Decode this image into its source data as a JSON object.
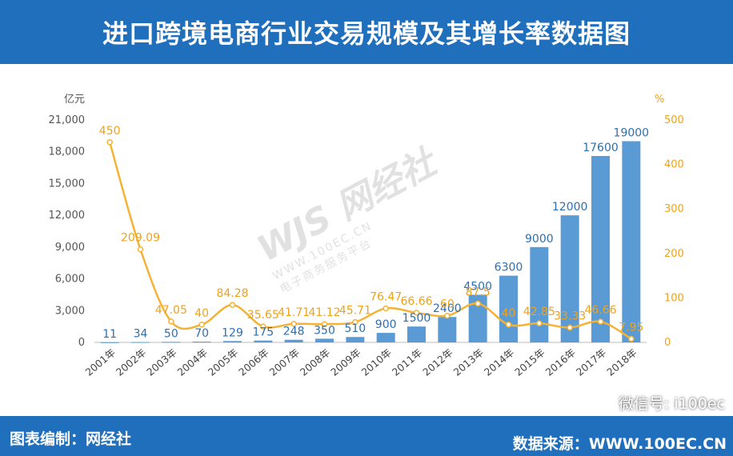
{
  "header": {
    "title": "进口跨境电商行业交易规模及其增长率数据图"
  },
  "footer": {
    "left": "图表编制：网经社",
    "right": "数据来源：WWW.100EC.CN",
    "wechat": "微信号: i100ec"
  },
  "watermark": {
    "logo": "WJS",
    "name": "网经社",
    "url": "WWW.100EC.CN",
    "tagline": "电子商务服务平台"
  },
  "colors": {
    "header_bg": "#1f6fbd",
    "bar": "#5b9bd5",
    "line": "#f5b335",
    "bar_label": "#2e6fb0",
    "line_label": "#f0a21a"
  },
  "chart_data": {
    "type": "bar",
    "title": "进口跨境电商行业交易规模及其增长率数据图",
    "categories": [
      "2001年",
      "2002年",
      "2003年",
      "2004年",
      "2005年",
      "2006年",
      "2007年",
      "2008年",
      "2009年",
      "2010年",
      "2011年",
      "2012年",
      "2013年",
      "2014年",
      "2015年",
      "2016年",
      "2017年",
      "2018年"
    ],
    "series": [
      {
        "type": "bar",
        "axis": "left",
        "values": [
          11,
          34,
          50,
          70,
          129,
          175,
          248,
          350,
          510,
          900,
          1500,
          2400,
          4500,
          6300,
          9000,
          12000,
          17600,
          19000
        ],
        "labels": [
          "11",
          "34",
          "50",
          "70",
          "129",
          "175",
          "248",
          "350",
          "510",
          "900",
          "1500",
          "2400",
          "4500",
          "6300",
          "9000",
          "12000",
          "17600",
          "19000"
        ]
      },
      {
        "type": "line",
        "axis": "right",
        "values": [
          450,
          209.09,
          47.05,
          40,
          84.28,
          35.65,
          41.71,
          41.12,
          45.71,
          76.47,
          66.66,
          60,
          87.5,
          40,
          42.85,
          33.33,
          46.66,
          7.95
        ],
        "labels": [
          "450",
          "209.09",
          "47.05",
          "40",
          "84.28",
          "35.65",
          "41.71",
          "41.12",
          "45.71",
          "76.47",
          "66.66",
          "60",
          "87.5",
          "40",
          "42.85",
          "33.33",
          "46.66",
          "7.95"
        ]
      }
    ],
    "y_left": {
      "unit": "亿元",
      "ylim": [
        0,
        21000
      ],
      "ticks": [
        "0",
        "3,000",
        "6,000",
        "9,000",
        "12,000",
        "15,000",
        "18,000",
        "21,000"
      ]
    },
    "y_right": {
      "unit": "%",
      "ylim": [
        0,
        500
      ],
      "ticks": [
        "0",
        "100",
        "200",
        "300",
        "400",
        "500"
      ]
    },
    "grid": false,
    "legend": "none"
  }
}
